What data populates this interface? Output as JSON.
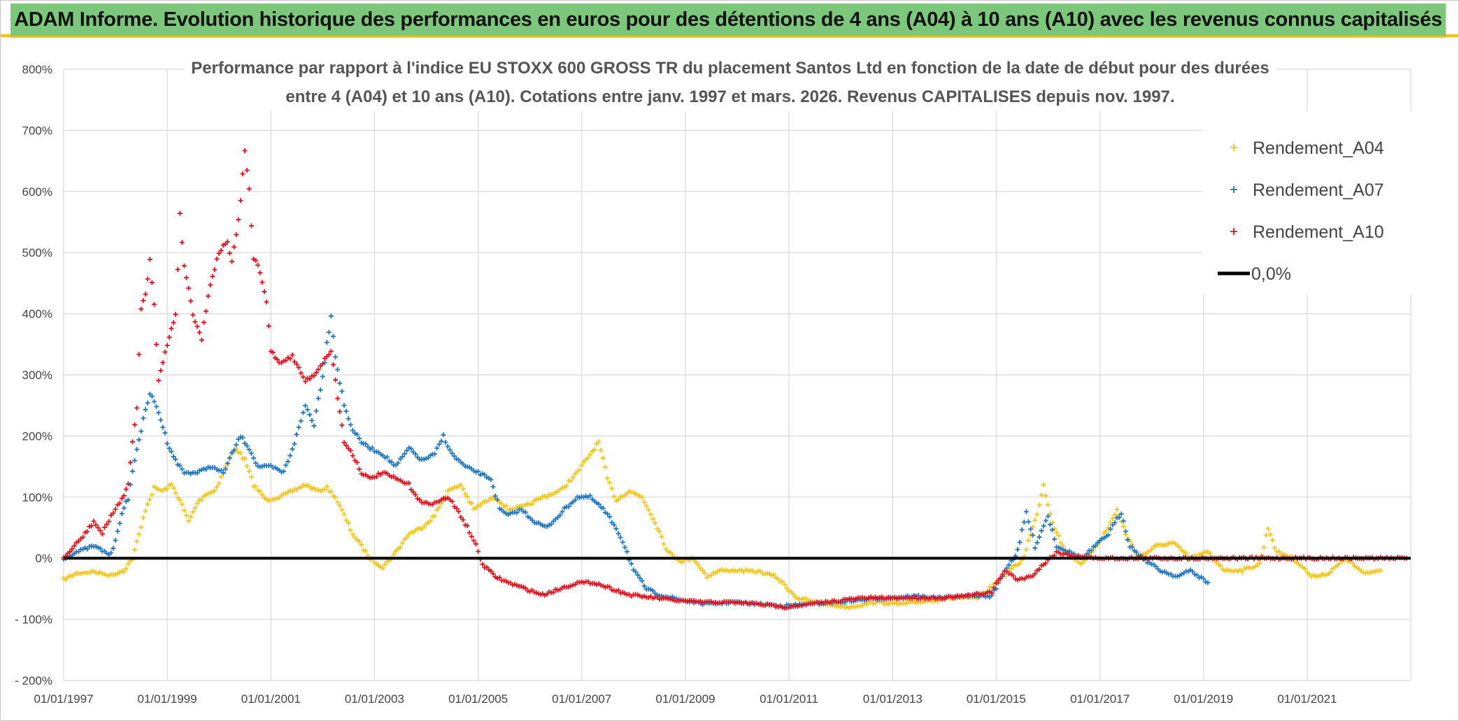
{
  "banner": {
    "title": "ADAM Informe. Evolution historique des performances en euros pour des détentions de 4 ans (A04) à 10 ans (A10) avec les revenus connus capitalisés"
  },
  "colors": {
    "banner_bg": "#7dc77d",
    "banner_border": "#f0c020",
    "a04": "#f5c518",
    "a07": "#1f77c4",
    "a10": "#e8101a",
    "zero_line": "#000000",
    "grid": "#d9d9d9"
  },
  "chart_data": {
    "type": "scatter",
    "title_line1": "Performance par rapport à l'indice EU STOXX 600 GROSS TR  du placement Santos Ltd en fonction de la date de début pour des durées",
    "title_line2": "entre 4 (A04) et 10 ans (A10). Cotations entre janv. 1997 et mars. 2026. Revenus CAPITALISES depuis nov. 1997.",
    "ylim": [
      -200,
      800
    ],
    "y_ticks": [
      "800%",
      "700%",
      "600%",
      "500%",
      "400%",
      "300%",
      "200%",
      "100%",
      "0%",
      "- 100%",
      "- 200%"
    ],
    "xlim": [
      "1997-01-01",
      "2023-01-01"
    ],
    "x_ticks": [
      "01/01/1997",
      "01/01/1999",
      "01/01/2001",
      "01/01/2003",
      "01/01/2005",
      "01/01/2007",
      "01/01/2009",
      "01/01/2011",
      "01/01/2013",
      "01/01/2015",
      "01/01/2017",
      "01/01/2019",
      "01/01/2021"
    ],
    "grid": true,
    "legend_position": "top-right",
    "legend": [
      "Rendement_A04",
      "Rendement_A07",
      "Rendement_A10",
      "0,0%"
    ],
    "series": [
      {
        "name": "Rendement_A04",
        "marker": "+",
        "points": [
          [
            "1997-01-01",
            -35
          ],
          [
            "1997-04-01",
            -25
          ],
          [
            "1997-08-01",
            -22
          ],
          [
            "1997-12-01",
            -28
          ],
          [
            "1998-03-01",
            -20
          ],
          [
            "1998-05-01",
            0
          ],
          [
            "1998-07-01",
            50
          ],
          [
            "1998-08-01",
            80
          ],
          [
            "1998-10-01",
            115
          ],
          [
            "1998-12-01",
            110
          ],
          [
            "1999-02-01",
            120
          ],
          [
            "1999-04-01",
            95
          ],
          [
            "1999-06-01",
            60
          ],
          [
            "1999-08-01",
            90
          ],
          [
            "1999-10-01",
            105
          ],
          [
            "1999-12-01",
            110
          ],
          [
            "2000-02-01",
            140
          ],
          [
            "2000-04-01",
            170
          ],
          [
            "2000-05-01",
            180
          ],
          [
            "2000-07-01",
            160
          ],
          [
            "2000-09-01",
            120
          ],
          [
            "2000-12-01",
            95
          ],
          [
            "2001-03-01",
            100
          ],
          [
            "2001-06-01",
            110
          ],
          [
            "2001-09-01",
            120
          ],
          [
            "2001-12-01",
            110
          ],
          [
            "2002-02-01",
            115
          ],
          [
            "2002-04-01",
            100
          ],
          [
            "2002-06-01",
            70
          ],
          [
            "2002-08-01",
            40
          ],
          [
            "2002-10-01",
            20
          ],
          [
            "2002-12-01",
            0
          ],
          [
            "2003-03-01",
            -15
          ],
          [
            "2003-06-01",
            10
          ],
          [
            "2003-09-01",
            40
          ],
          [
            "2003-12-01",
            50
          ],
          [
            "2004-03-01",
            70
          ],
          [
            "2004-06-01",
            110
          ],
          [
            "2004-09-01",
            120
          ],
          [
            "2004-12-01",
            80
          ],
          [
            "2005-02-01",
            90
          ],
          [
            "2005-05-01",
            100
          ],
          [
            "2005-08-01",
            80
          ],
          [
            "2005-12-01",
            85
          ],
          [
            "2006-04-01",
            100
          ],
          [
            "2006-08-01",
            110
          ],
          [
            "2006-12-01",
            140
          ],
          [
            "2007-03-01",
            170
          ],
          [
            "2007-05-01",
            190
          ],
          [
            "2007-07-01",
            130
          ],
          [
            "2007-09-01",
            95
          ],
          [
            "2007-12-01",
            110
          ],
          [
            "2008-03-01",
            100
          ],
          [
            "2008-06-01",
            60
          ],
          [
            "2008-09-01",
            10
          ],
          [
            "2008-12-01",
            -5
          ],
          [
            "2009-03-01",
            0
          ],
          [
            "2009-06-01",
            -30
          ],
          [
            "2009-09-01",
            -20
          ],
          [
            "2009-12-01",
            -20
          ],
          [
            "2010-06-01",
            -22
          ],
          [
            "2010-10-01",
            -30
          ],
          [
            "2011-03-01",
            -65
          ],
          [
            "2011-09-01",
            -75
          ],
          [
            "2012-03-01",
            -80
          ],
          [
            "2012-09-01",
            -72
          ],
          [
            "2013-03-01",
            -75
          ],
          [
            "2013-09-01",
            -70
          ],
          [
            "2014-03-01",
            -65
          ],
          [
            "2014-09-01",
            -65
          ],
          [
            "2015-01-01",
            -40
          ],
          [
            "2015-04-01",
            -20
          ],
          [
            "2015-07-01",
            -5
          ],
          [
            "2015-10-01",
            60
          ],
          [
            "2015-12-01",
            120
          ],
          [
            "2016-02-01",
            60
          ],
          [
            "2016-05-01",
            10
          ],
          [
            "2016-09-01",
            -10
          ],
          [
            "2016-12-01",
            20
          ],
          [
            "2017-03-01",
            50
          ],
          [
            "2017-05-01",
            80
          ],
          [
            "2017-07-01",
            40
          ],
          [
            "2017-10-01",
            0
          ],
          [
            "2018-02-01",
            20
          ],
          [
            "2018-06-01",
            25
          ],
          [
            "2018-10-01",
            0
          ],
          [
            "2019-02-01",
            10
          ],
          [
            "2019-06-01",
            -20
          ],
          [
            "2019-10-01",
            -20
          ],
          [
            "2020-02-01",
            -10
          ],
          [
            "2020-04-01",
            50
          ],
          [
            "2020-06-01",
            10
          ],
          [
            "2020-10-01",
            0
          ],
          [
            "2021-02-01",
            -30
          ],
          [
            "2021-06-01",
            -25
          ],
          [
            "2021-10-01",
            0
          ],
          [
            "2022-02-01",
            -25
          ],
          [
            "2022-06-01",
            -20
          ]
        ]
      },
      {
        "name": "Rendement_A07",
        "marker": "+",
        "points": [
          [
            "1997-01-01",
            0
          ],
          [
            "1997-04-01",
            10
          ],
          [
            "1997-08-01",
            20
          ],
          [
            "1997-12-01",
            5
          ],
          [
            "1998-02-01",
            60
          ],
          [
            "1998-04-01",
            100
          ],
          [
            "1998-06-01",
            180
          ],
          [
            "1998-07-01",
            210
          ],
          [
            "1998-09-01",
            270
          ],
          [
            "1998-11-01",
            240
          ],
          [
            "1999-01-01",
            190
          ],
          [
            "1999-03-01",
            160
          ],
          [
            "1999-05-01",
            140
          ],
          [
            "1999-08-01",
            140
          ],
          [
            "1999-11-01",
            150
          ],
          [
            "2000-02-01",
            140
          ],
          [
            "2000-04-01",
            170
          ],
          [
            "2000-06-01",
            200
          ],
          [
            "2000-08-01",
            180
          ],
          [
            "2000-10-01",
            150
          ],
          [
            "2001-01-01",
            150
          ],
          [
            "2001-04-01",
            140
          ],
          [
            "2001-07-01",
            200
          ],
          [
            "2001-09-01",
            250
          ],
          [
            "2001-11-01",
            220
          ],
          [
            "2002-01-01",
            300
          ],
          [
            "2002-03-01",
            400
          ],
          [
            "2002-04-01",
            330
          ],
          [
            "2002-06-01",
            250
          ],
          [
            "2002-08-01",
            210
          ],
          [
            "2002-10-01",
            190
          ],
          [
            "2002-12-01",
            180
          ],
          [
            "2003-03-01",
            170
          ],
          [
            "2003-06-01",
            150
          ],
          [
            "2003-09-01",
            180
          ],
          [
            "2003-12-01",
            160
          ],
          [
            "2004-03-01",
            170
          ],
          [
            "2004-05-01",
            200
          ],
          [
            "2004-07-01",
            170
          ],
          [
            "2004-10-01",
            150
          ],
          [
            "2005-01-01",
            140
          ],
          [
            "2005-04-01",
            130
          ],
          [
            "2005-06-01",
            80
          ],
          [
            "2005-08-01",
            70
          ],
          [
            "2005-11-01",
            80
          ],
          [
            "2006-02-01",
            60
          ],
          [
            "2006-05-01",
            50
          ],
          [
            "2006-09-01",
            80
          ],
          [
            "2006-12-01",
            100
          ],
          [
            "2007-03-01",
            100
          ],
          [
            "2007-06-01",
            80
          ],
          [
            "2007-09-01",
            50
          ],
          [
            "2007-11-01",
            20
          ],
          [
            "2008-01-01",
            -20
          ],
          [
            "2008-04-01",
            -50
          ],
          [
            "2008-07-01",
            -60
          ],
          [
            "2008-10-01",
            -65
          ],
          [
            "2009-01-01",
            -70
          ],
          [
            "2009-06-01",
            -75
          ],
          [
            "2009-12-01",
            -72
          ],
          [
            "2010-06-01",
            -75
          ],
          [
            "2010-12-01",
            -78
          ],
          [
            "2011-06-01",
            -75
          ],
          [
            "2011-12-01",
            -72
          ],
          [
            "2012-06-01",
            -68
          ],
          [
            "2012-12-01",
            -65
          ],
          [
            "2013-06-01",
            -62
          ],
          [
            "2013-12-01",
            -65
          ],
          [
            "2014-06-01",
            -62
          ],
          [
            "2014-12-01",
            -62
          ],
          [
            "2015-03-01",
            -20
          ],
          [
            "2015-06-01",
            10
          ],
          [
            "2015-08-01",
            75
          ],
          [
            "2015-10-01",
            20
          ],
          [
            "2016-01-01",
            70
          ],
          [
            "2016-03-01",
            20
          ],
          [
            "2016-06-01",
            10
          ],
          [
            "2016-09-01",
            0
          ],
          [
            "2016-12-01",
            20
          ],
          [
            "2017-03-01",
            40
          ],
          [
            "2017-06-01",
            75
          ],
          [
            "2017-08-01",
            20
          ],
          [
            "2017-11-01",
            0
          ],
          [
            "2018-03-01",
            -20
          ],
          [
            "2018-07-01",
            -30
          ],
          [
            "2018-10-01",
            -20
          ],
          [
            "2019-02-01",
            -40
          ]
        ]
      },
      {
        "name": "Rendement_A10",
        "marker": "+",
        "points": [
          [
            "1997-01-01",
            0
          ],
          [
            "1997-03-01",
            15
          ],
          [
            "1997-06-01",
            40
          ],
          [
            "1997-08-01",
            60
          ],
          [
            "1997-10-01",
            40
          ],
          [
            "1997-12-01",
            70
          ],
          [
            "1998-02-01",
            90
          ],
          [
            "1998-04-01",
            120
          ],
          [
            "1998-06-01",
            250
          ],
          [
            "1998-07-01",
            410
          ],
          [
            "1998-08-01",
            430
          ],
          [
            "1998-09-01",
            490
          ],
          [
            "1998-10-01",
            420
          ],
          [
            "1998-11-01",
            290
          ],
          [
            "1999-01-01",
            350
          ],
          [
            "1999-03-01",
            400
          ],
          [
            "1999-04-01",
            560
          ],
          [
            "1999-05-01",
            480
          ],
          [
            "1999-07-01",
            400
          ],
          [
            "1999-09-01",
            360
          ],
          [
            "1999-11-01",
            450
          ],
          [
            "2000-01-01",
            500
          ],
          [
            "2000-03-01",
            520
          ],
          [
            "2000-04-01",
            480
          ],
          [
            "2000-06-01",
            580
          ],
          [
            "2000-07-01",
            670
          ],
          [
            "2000-08-01",
            600
          ],
          [
            "2000-09-01",
            490
          ],
          [
            "2000-10-01",
            480
          ],
          [
            "2000-12-01",
            420
          ],
          [
            "2001-01-01",
            340
          ],
          [
            "2001-03-01",
            320
          ],
          [
            "2001-06-01",
            330
          ],
          [
            "2001-09-01",
            290
          ],
          [
            "2001-11-01",
            300
          ],
          [
            "2002-01-01",
            320
          ],
          [
            "2002-03-01",
            340
          ],
          [
            "2002-04-01",
            290
          ],
          [
            "2002-06-01",
            190
          ],
          [
            "2002-08-01",
            170
          ],
          [
            "2002-10-01",
            140
          ],
          [
            "2002-12-01",
            130
          ],
          [
            "2003-03-01",
            140
          ],
          [
            "2003-06-01",
            130
          ],
          [
            "2003-09-01",
            120
          ],
          [
            "2003-12-01",
            90
          ],
          [
            "2004-03-01",
            90
          ],
          [
            "2004-06-01",
            100
          ],
          [
            "2004-09-01",
            70
          ],
          [
            "2004-12-01",
            30
          ],
          [
            "2005-02-01",
            -10
          ],
          [
            "2005-05-01",
            -30
          ],
          [
            "2005-08-01",
            -40
          ],
          [
            "2005-12-01",
            -50
          ],
          [
            "2006-04-01",
            -60
          ],
          [
            "2006-08-01",
            -50
          ],
          [
            "2006-12-01",
            -40
          ],
          [
            "2007-04-01",
            -40
          ],
          [
            "2007-08-01",
            -50
          ],
          [
            "2007-12-01",
            -60
          ],
          [
            "2008-06-01",
            -65
          ],
          [
            "2008-12-01",
            -70
          ],
          [
            "2009-06-01",
            -72
          ],
          [
            "2009-12-01",
            -72
          ],
          [
            "2010-06-01",
            -75
          ],
          [
            "2010-12-01",
            -80
          ],
          [
            "2011-06-01",
            -75
          ],
          [
            "2011-12-01",
            -70
          ],
          [
            "2012-06-01",
            -65
          ],
          [
            "2012-12-01",
            -65
          ],
          [
            "2013-06-01",
            -65
          ],
          [
            "2013-12-01",
            -65
          ],
          [
            "2014-06-01",
            -62
          ],
          [
            "2014-12-01",
            -55
          ],
          [
            "2015-03-01",
            -20
          ],
          [
            "2015-06-01",
            -35
          ],
          [
            "2015-09-01",
            -30
          ],
          [
            "2015-12-01",
            -10
          ],
          [
            "2016-03-01",
            10
          ],
          [
            "2016-06-01",
            5
          ],
          [
            "2016-12-01",
            0
          ],
          [
            "2017-06-01",
            0
          ],
          [
            "2018-06-01",
            0
          ],
          [
            "2019-06-01",
            0
          ],
          [
            "2020-06-01",
            0
          ],
          [
            "2021-06-01",
            0
          ],
          [
            "2022-06-01",
            0
          ],
          [
            "2022-12-01",
            0
          ]
        ]
      }
    ]
  }
}
